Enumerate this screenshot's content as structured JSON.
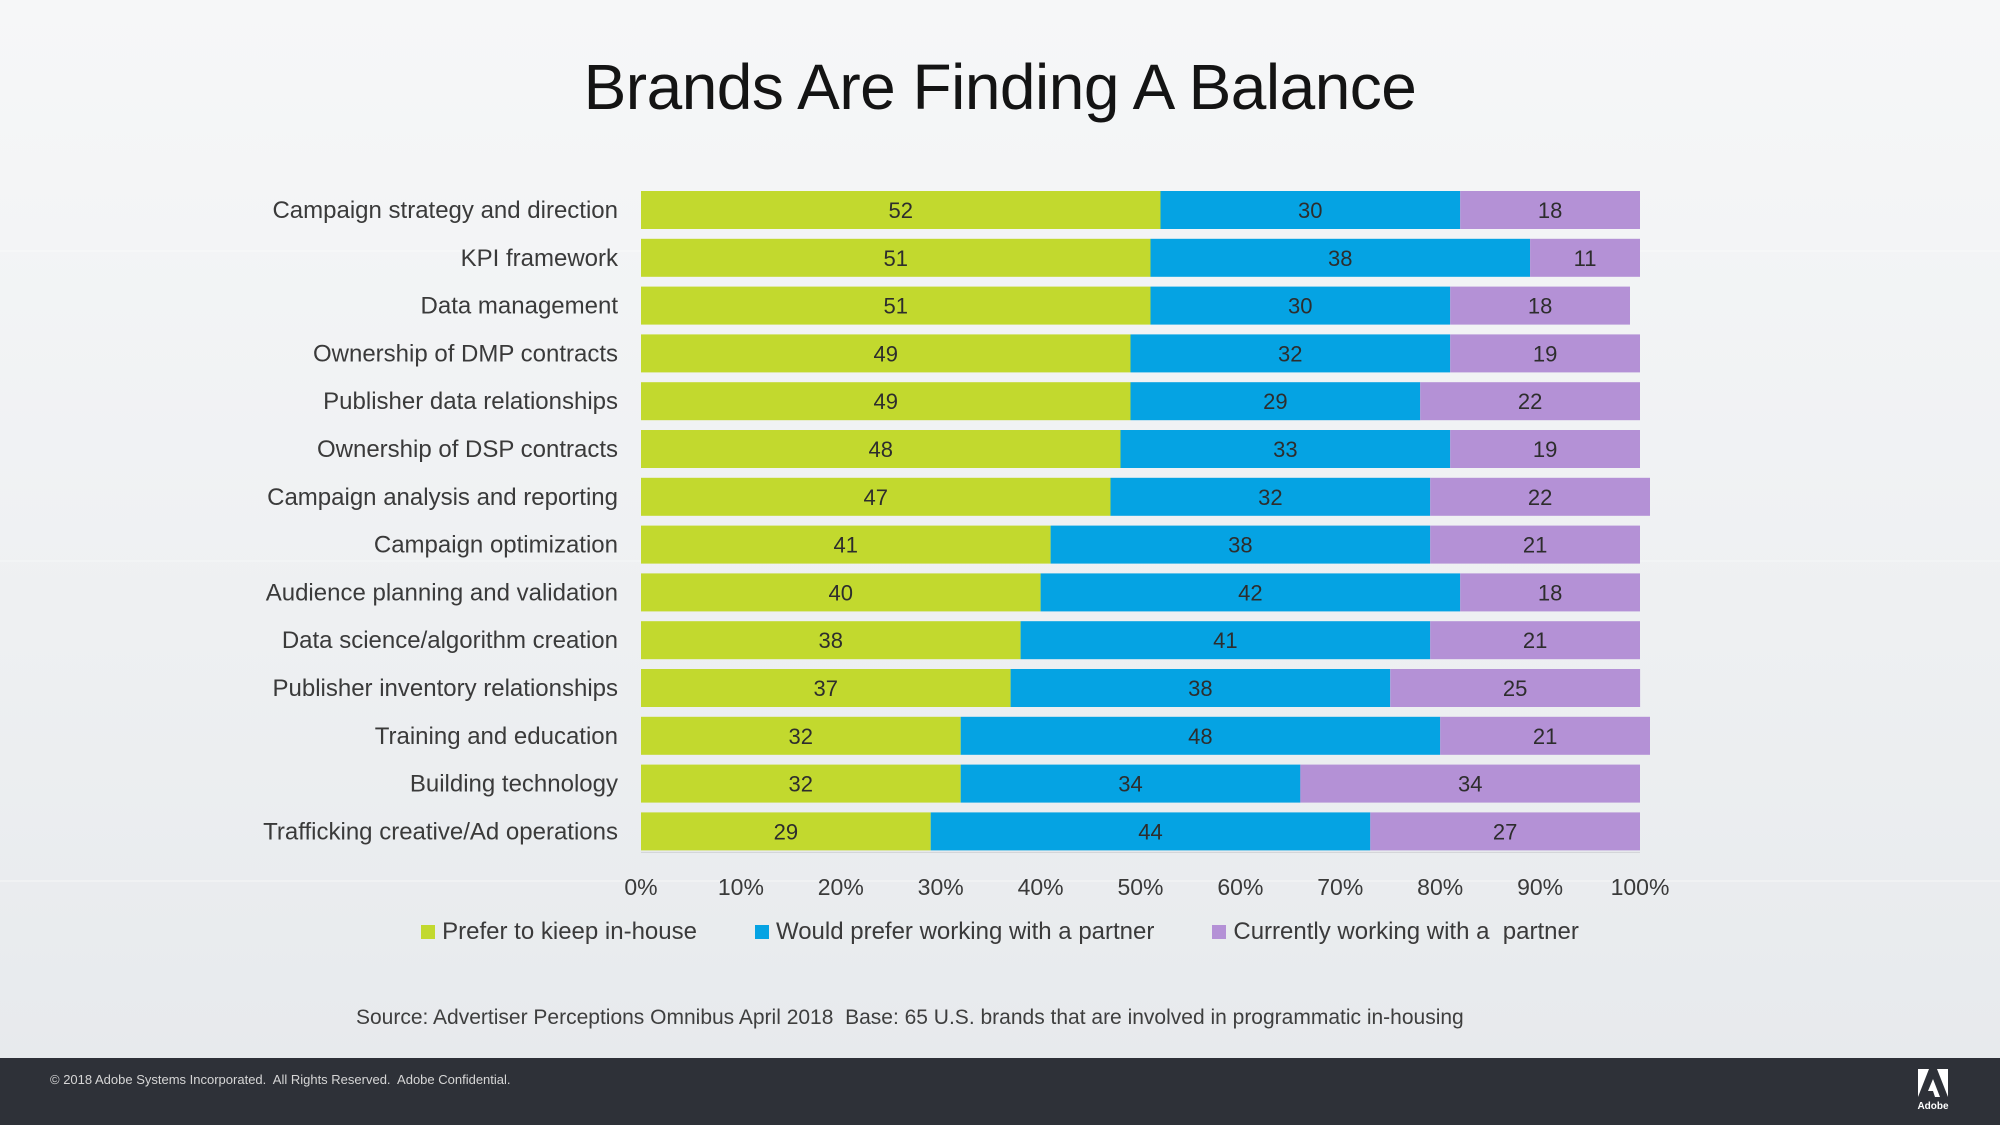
{
  "title": "Brands Are Finding A Balance",
  "chart_data": {
    "type": "bar",
    "orientation": "horizontal",
    "stacked": true,
    "categories": [
      "Campaign strategy and direction",
      "KPI framework",
      "Data management",
      "Ownership of DMP contracts",
      "Publisher data relationships",
      "Ownership of DSP contracts",
      "Campaign analysis and reporting",
      "Campaign optimization",
      "Audience planning and validation",
      "Data science/algorithm creation",
      "Publisher inventory relationships",
      "Training and education",
      "Building technology",
      "Trafficking creative/Ad operations"
    ],
    "series": [
      {
        "name": "Prefer to kieep in-house",
        "color": "#c2d92e",
        "values": [
          52,
          51,
          51,
          49,
          49,
          48,
          47,
          41,
          40,
          38,
          37,
          32,
          32,
          29
        ]
      },
      {
        "name": "Would prefer working with a partner",
        "color": "#05a3e3",
        "values": [
          30,
          38,
          30,
          32,
          29,
          33,
          32,
          38,
          42,
          41,
          38,
          48,
          34,
          44
        ]
      },
      {
        "name": "Currently working with a  partner",
        "color": "#b491d6",
        "values": [
          18,
          11,
          18,
          19,
          22,
          19,
          22,
          21,
          18,
          21,
          25,
          21,
          34,
          27
        ]
      }
    ],
    "xlim": [
      0,
      100
    ],
    "xticks": [
      "0%",
      "10%",
      "20%",
      "30%",
      "40%",
      "50%",
      "60%",
      "70%",
      "80%",
      "90%",
      "100%"
    ],
    "legend": "bottom",
    "grid": false
  },
  "source": "Source: Advertiser Perceptions Omnibus April 2018  Base: 65 U.S. brands that are involved in programmatic in-housing",
  "footer": {
    "copyright": "© 2018 Adobe Systems Incorporated.  All Rights Reserved.  Adobe Confidential.",
    "logo_text": "Adobe"
  }
}
